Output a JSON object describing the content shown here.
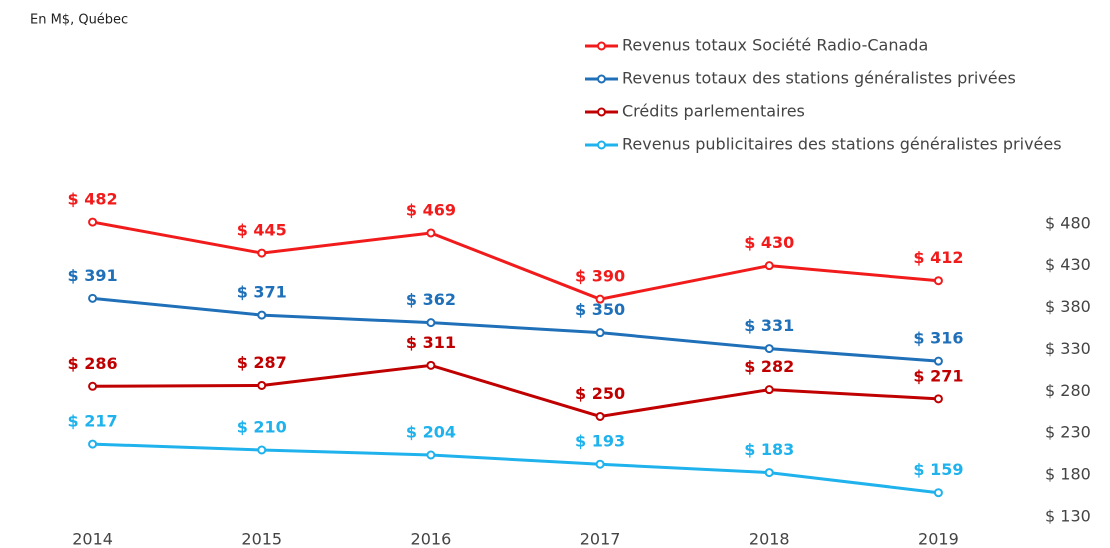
{
  "chart_data": {
    "type": "line",
    "subtitle": "En M$, Québec",
    "categories": [
      "2014",
      "2015",
      "2016",
      "2017",
      "2018",
      "2019"
    ],
    "series": [
      {
        "name": "Revenus totaux Société Radio-Canada",
        "color": "#f21b1b",
        "values": [
          482,
          445,
          469,
          390,
          430,
          412
        ],
        "value_labels": [
          "$ 482",
          "$ 445",
          "$ 469",
          "$ 390",
          "$ 430",
          "$ 412"
        ]
      },
      {
        "name": "Revenus totaux des stations généralistes privées",
        "color": "#1f70b8",
        "values": [
          391,
          371,
          362,
          350,
          331,
          316
        ],
        "value_labels": [
          "$ 391",
          "$ 371",
          "$ 362",
          "$ 350",
          "$ 331",
          "$ 316"
        ]
      },
      {
        "name": "Crédits parlementaires",
        "color": "#c00000",
        "values": [
          286,
          287,
          311,
          250,
          282,
          271
        ],
        "value_labels": [
          "$ 286",
          "$ 287",
          "$ 311",
          "$ 250",
          "$ 282",
          "$ 271"
        ]
      },
      {
        "name": "Revenus publicitaires des stations généralistes privées",
        "color": "#1fb2ec",
        "values": [
          217,
          210,
          204,
          193,
          183,
          159
        ],
        "value_labels": [
          "$ 217",
          "$ 210",
          "$ 204",
          "$ 193",
          "$ 183",
          "$ 159"
        ]
      }
    ],
    "ylim": [
      130,
      500
    ],
    "yticks": [
      {
        "value": 130,
        "label": "$ 130"
      },
      {
        "value": 180,
        "label": "$ 180"
      },
      {
        "value": 230,
        "label": "$ 230"
      },
      {
        "value": 280,
        "label": "$ 280"
      },
      {
        "value": 330,
        "label": "$ 330"
      },
      {
        "value": 380,
        "label": "$ 380"
      },
      {
        "value": 430,
        "label": "$ 430"
      },
      {
        "value": 480,
        "label": "$ 480"
      }
    ],
    "grid": false,
    "legend": "top-right"
  }
}
